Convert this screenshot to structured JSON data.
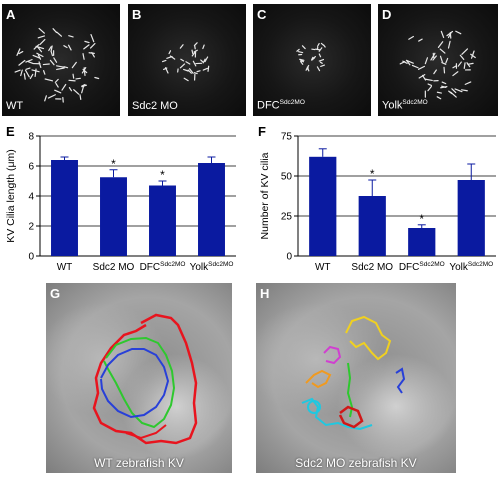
{
  "panels": {
    "A": {
      "letter": "A",
      "condition": "WT",
      "condition_sup": ""
    },
    "B": {
      "letter": "B",
      "condition": "Sdc2 MO",
      "condition_sup": ""
    },
    "C": {
      "letter": "C",
      "condition": "DFC",
      "condition_sup": "Sdc2MO"
    },
    "D": {
      "letter": "D",
      "condition": "Yolk",
      "condition_sup": "Sdc2MO"
    },
    "E": {
      "letter": "E"
    },
    "F": {
      "letter": "F"
    },
    "G": {
      "letter": "G",
      "caption": "WT zebrafish KV"
    },
    "H": {
      "letter": "H",
      "caption": "Sdc2 MO zebrafish KV"
    }
  },
  "colors": {
    "bar": "#0a1aa0",
    "track_red": "#e8141e",
    "track_green": "#2ec82e",
    "track_blue": "#2840d8",
    "track_yellow": "#f0d020",
    "track_magenta": "#d040d0",
    "track_orange": "#f09a20",
    "track_cyan": "#20c8e0",
    "track_darkred": "#d01818"
  },
  "chart_data": [
    {
      "type": "bar",
      "panel": "E",
      "categories": [
        "WT",
        "Sdc2 MO",
        "DFC",
        "Yolk"
      ],
      "category_sups": [
        "",
        "",
        "Sdc2MO",
        "Sdc2MO"
      ],
      "values": [
        6.4,
        5.25,
        4.7,
        6.2
      ],
      "errors": [
        0.2,
        0.5,
        0.3,
        0.4
      ],
      "significance": [
        "",
        "*",
        "*",
        ""
      ],
      "ylabel": "KV Cilia length (μm)",
      "ylim": [
        0,
        8
      ],
      "yticks": [
        0,
        2,
        4,
        6,
        8
      ],
      "ytick_labels": [
        "0",
        "2",
        "4",
        "6",
        "8"
      ],
      "grid": true
    },
    {
      "type": "bar",
      "panel": "F",
      "categories": [
        "WT",
        "Sdc2 MO",
        "DFC",
        "Yolk"
      ],
      "category_sups": [
        "",
        "",
        "Sdc2MO",
        "Sdc2MO"
      ],
      "values": [
        62,
        37.5,
        17.5,
        47.5
      ],
      "errors": [
        5,
        10,
        2,
        10
      ],
      "significance": [
        "",
        "*",
        "*",
        ""
      ],
      "ylabel": "Number of KV cilia",
      "ylim": [
        0,
        75
      ],
      "yticks": [
        0,
        25,
        50,
        75
      ],
      "ytick_labels": [
        "0",
        "25",
        "50",
        "75"
      ],
      "grid": true
    }
  ]
}
